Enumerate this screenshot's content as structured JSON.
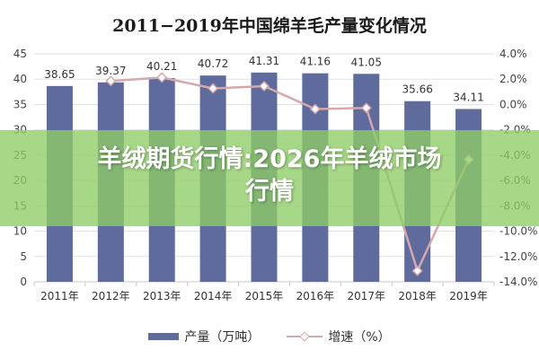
{
  "chart_data": {
    "type": "bar",
    "title": "2011−2019年中国绵羊毛产量变化情况",
    "categories": [
      "2011年",
      "2012年",
      "2013年",
      "2014年",
      "2015年",
      "2016年",
      "2017年",
      "2018年",
      "2019年"
    ],
    "series": [
      {
        "name": "产量（万吨）",
        "type": "bar",
        "axis": "left",
        "color": "#5e6b9c",
        "values": [
          38.65,
          39.37,
          40.21,
          40.72,
          41.31,
          41.16,
          41.05,
          35.66,
          34.11
        ],
        "labels": [
          "38.65",
          "39.37",
          "40.21",
          "40.72",
          "41.31",
          "41.16",
          "41.05",
          "35.66",
          "34.11"
        ]
      },
      {
        "name": "增速（%）",
        "type": "line",
        "axis": "right",
        "color": "#d4a8ad",
        "values": [
          null,
          1.86,
          2.13,
          1.27,
          1.45,
          -0.36,
          -0.27,
          -13.13,
          -4.35
        ]
      }
    ],
    "y_left": {
      "min": 0,
      "max": 45,
      "step": 5,
      "ticks": [
        "0",
        "5",
        "10",
        "15",
        "20",
        "25",
        "30",
        "35",
        "40",
        "45"
      ]
    },
    "y_right": {
      "min": -14,
      "max": 4,
      "step": 2,
      "ticks": [
        "-14.0%",
        "-12.0%",
        "-10.0%",
        "-8.0%",
        "-6.0%",
        "-4.0%",
        "-2.0%",
        "0.0%",
        "2.0%",
        "4.0%"
      ]
    },
    "grid": true,
    "legend_position": "bottom"
  },
  "overlay": {
    "line1": "羊绒期货行情:2026年羊绒市场",
    "line2": "行情"
  }
}
